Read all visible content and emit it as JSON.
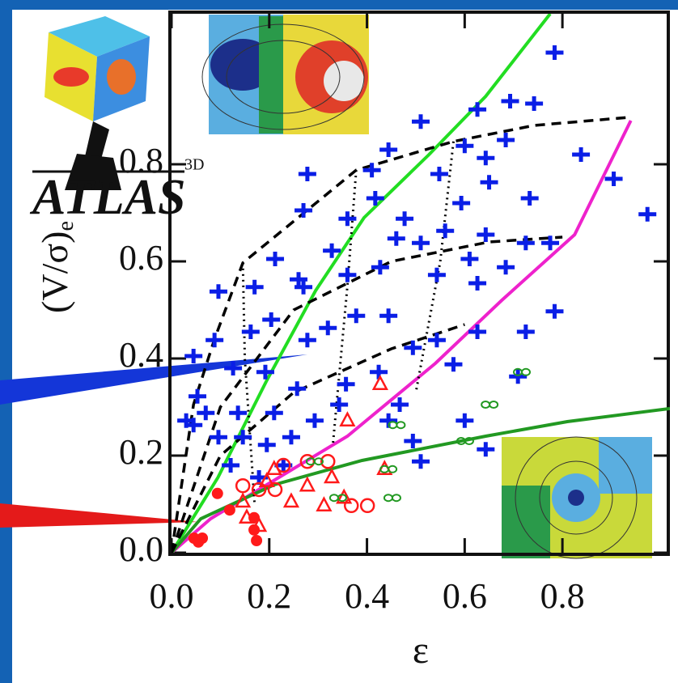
{
  "logo": {
    "text": "ATLAS",
    "sup": "3D"
  },
  "chart_data": {
    "type": "scatter",
    "x_label": "ε",
    "y_label": "(V/σ)",
    "y_label_sub": "e",
    "xlim": [
      0,
      1.02
    ],
    "ylim": [
      0,
      1.11
    ],
    "xticks": [
      {
        "value": 0,
        "label": "0.0"
      },
      {
        "value": 0.2,
        "label": "0.2"
      },
      {
        "value": 0.4,
        "label": "0.4"
      },
      {
        "value": 0.6,
        "label": "0.6"
      },
      {
        "value": 0.8,
        "label": "0.8"
      }
    ],
    "yticks": [
      {
        "value": 0,
        "label": "0.0"
      },
      {
        "value": 0.2,
        "label": "0.2"
      },
      {
        "value": 0.4,
        "label": "0.4"
      },
      {
        "value": 0.6,
        "label": "0.6"
      },
      {
        "value": 0.8,
        "label": "0.8"
      }
    ],
    "series": [
      {
        "marker": "line",
        "color": "#22dd22",
        "x": [
          0,
          0.095,
          0.195,
          0.295,
          0.394,
          0.527,
          0.643,
          0.775
        ],
        "values": [
          0,
          0.155,
          0.355,
          0.54,
          0.69,
          0.82,
          0.94,
          1.11
        ]
      },
      {
        "marker": "line",
        "color": "#ee22cc",
        "x": [
          0,
          0.08,
          0.195,
          0.36,
          0.54,
          0.676,
          0.825,
          0.94
        ],
        "values": [
          0,
          0.07,
          0.14,
          0.24,
          0.39,
          0.52,
          0.655,
          0.89
        ]
      },
      {
        "marker": "line",
        "color": "#229922",
        "x": [
          0,
          0.06,
          0.21,
          0.39,
          0.643,
          0.81,
          1.02
        ],
        "values": [
          0,
          0.07,
          0.14,
          0.19,
          0.24,
          0.27,
          0.297
        ]
      },
      {
        "marker": "dashed",
        "color": "#000000",
        "x": [
          0,
          0.045,
          0.088,
          0.146,
          0.378,
          0.577,
          0.742,
          0.94
        ],
        "values": [
          0,
          0.305,
          0.44,
          0.597,
          0.788,
          0.847,
          0.88,
          0.897
        ]
      },
      {
        "marker": "dashed",
        "color": "#000000",
        "x": [
          0,
          0.1,
          0.25,
          0.45,
          0.65,
          0.8
        ],
        "values": [
          0,
          0.3,
          0.5,
          0.6,
          0.64,
          0.65
        ]
      },
      {
        "marker": "dashed",
        "color": "#000000",
        "x": [
          0,
          0.1,
          0.25,
          0.45,
          0.6
        ],
        "values": [
          0,
          0.2,
          0.33,
          0.42,
          0.47
        ]
      },
      {
        "marker": "dotted",
        "color": "#000000",
        "x": [
          0.146,
          0.15,
          0.17
        ],
        "values": [
          0.597,
          0.4,
          0.1
        ]
      },
      {
        "marker": "dotted",
        "color": "#000000",
        "x": [
          0.378,
          0.36,
          0.33
        ],
        "values": [
          0.788,
          0.55,
          0.22
        ]
      },
      {
        "marker": "dotted",
        "color": "#000000",
        "x": [
          0.577,
          0.55,
          0.5
        ],
        "values": [
          0.847,
          0.6,
          0.33
        ]
      },
      {
        "marker": "plus",
        "color": "#0a1ee6",
        "x": [
          0.784,
          0.626,
          0.693,
          0.742,
          0.51,
          0.444,
          0.278,
          0.6,
          0.643,
          0.684,
          0.838,
          0.905,
          0.974,
          0.548,
          0.65,
          0.593,
          0.733,
          0.417,
          0.27,
          0.36,
          0.46,
          0.51,
          0.56,
          0.643,
          0.725,
          0.775,
          0.328,
          0.212,
          0.26,
          0.27,
          0.36,
          0.427,
          0.543,
          0.626,
          0.684,
          0.784,
          0.096,
          0.17,
          0.204,
          0.088,
          0.162,
          0.278,
          0.32,
          0.378,
          0.444,
          0.494,
          0.543,
          0.626,
          0.725,
          0.577,
          0.045,
          0.126,
          0.192,
          0.257,
          0.357,
          0.424,
          0.467,
          0.053,
          0.136,
          0.21,
          0.293,
          0.343,
          0.045,
          0.096,
          0.146,
          0.195,
          0.245,
          0.121,
          0.179,
          0.229,
          0.444,
          0.494,
          0.51,
          0.6,
          0.643,
          0.709,
          0.61,
          0.477,
          0.41,
          0.07,
          0.03
        ],
        "values": [
          1.03,
          0.913,
          0.93,
          0.925,
          0.888,
          0.83,
          0.78,
          0.838,
          0.813,
          0.85,
          0.82,
          0.77,
          0.697,
          0.78,
          0.763,
          0.72,
          0.73,
          0.73,
          0.705,
          0.688,
          0.647,
          0.638,
          0.663,
          0.655,
          0.638,
          0.638,
          0.622,
          0.605,
          0.563,
          0.547,
          0.572,
          0.588,
          0.572,
          0.555,
          0.588,
          0.497,
          0.538,
          0.547,
          0.48,
          0.438,
          0.455,
          0.438,
          0.463,
          0.488,
          0.488,
          0.422,
          0.438,
          0.455,
          0.455,
          0.388,
          0.405,
          0.38,
          0.372,
          0.338,
          0.347,
          0.372,
          0.305,
          0.322,
          0.288,
          0.288,
          0.272,
          0.305,
          0.263,
          0.238,
          0.238,
          0.222,
          0.238,
          0.18,
          0.155,
          0.18,
          0.272,
          0.23,
          0.188,
          0.272,
          0.213,
          0.363,
          0.605,
          0.688,
          0.788,
          0.288,
          0.272
        ]
      },
      {
        "marker": "triangle",
        "color": "#ff1a1a",
        "x": [
          0.427,
          0.36,
          0.21,
          0.278,
          0.328,
          0.245,
          0.312,
          0.146,
          0.154,
          0.179,
          0.436,
          0.353,
          0.195
        ],
        "values": [
          0.347,
          0.272,
          0.172,
          0.138,
          0.155,
          0.105,
          0.097,
          0.105,
          0.072,
          0.055,
          0.172,
          0.113,
          0.147
        ]
      },
      {
        "marker": "circle",
        "color": "#ff1a1a",
        "x": [
          0.229,
          0.278,
          0.32,
          0.212,
          0.368,
          0.401,
          0.146,
          0.179
        ],
        "values": [
          0.18,
          0.188,
          0.188,
          0.13,
          0.097,
          0.097,
          0.138,
          0.13
        ]
      },
      {
        "marker": "filled-circle",
        "color": "#ff1a1a",
        "x": [
          0.046,
          0.063,
          0.055,
          0.094,
          0.119,
          0.169,
          0.174,
          0.169
        ],
        "values": [
          0.03,
          0.03,
          0.022,
          0.122,
          0.088,
          0.072,
          0.025,
          0.047
        ]
      },
      {
        "marker": "infinity",
        "color": "#229922",
        "x": [
          0.717,
          0.651,
          0.461,
          0.601,
          0.293,
          0.444,
          0.452,
          0.341
        ],
        "values": [
          0.372,
          0.305,
          0.263,
          0.23,
          0.188,
          0.172,
          0.113,
          0.113
        ]
      }
    ]
  }
}
